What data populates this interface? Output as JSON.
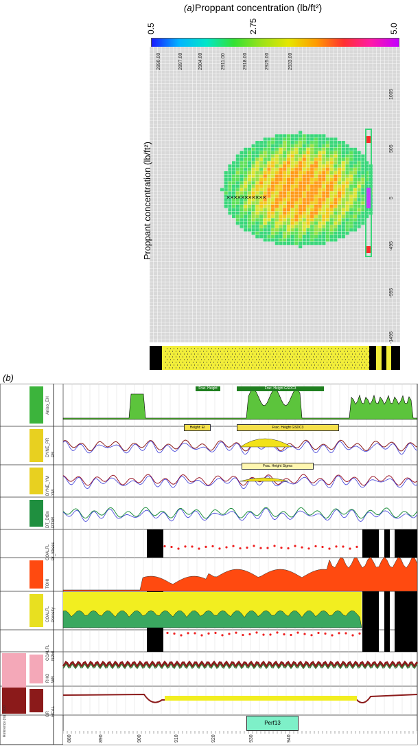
{
  "panel_a": {
    "label": "(a)",
    "colorbar_title": "Proppant concentration (lb/ft²)",
    "colorbar_ticks": [
      "0.5",
      "2.75",
      "5.0"
    ],
    "colorbar_colors": [
      "#1a1aff",
      "#00b4ff",
      "#00e6c8",
      "#33e233",
      "#9be21a",
      "#e6e600",
      "#ff9a00",
      "#ff3030",
      "#ff1aa8",
      "#c400ff"
    ],
    "side_axis_label": "Proppant concentration (lb/ft²)",
    "depth_labels": [
      "2890.00",
      "2897.00",
      "2904.00",
      "2911.00",
      "2918.00",
      "2925.00",
      "2933.00"
    ],
    "right_axis_labels": [
      "1005",
      "505",
      "5",
      "-495",
      "-995",
      "-1495"
    ],
    "perforation_marks": "×××××××××××"
  },
  "panel_b": {
    "label": "(b)",
    "depth_axis_ticks": [
      "880",
      "890",
      "900",
      "910",
      "920",
      "930",
      "940"
    ],
    "reference_label": "Reference (m) 1:100",
    "top_box_labels": [
      "Frac. Height Lith",
      "Frac. Height GSDC3"
    ],
    "box_labels_row2": [
      "Height: El",
      "Frac. Height GSDC3"
    ],
    "box_labels_row3": [
      "Frac. Height Sigma"
    ],
    "perf_label": "Perf13",
    "tracks": [
      {
        "name": "track-1",
        "left_labels": [
          "Aniso_EH"
        ],
        "color": "#3cb43c"
      },
      {
        "name": "track-2",
        "left_labels": [
          "DYNE_PR",
          "PR"
        ],
        "color": "#e8d020"
      },
      {
        "name": "track-3",
        "left_labels": [
          "DYNE_YM",
          "YM"
        ],
        "color": "#e8d020"
      },
      {
        "name": "track-4",
        "left_labels": [
          "DT_DtBn",
          "DTSR"
        ],
        "color": "#1f8f3f"
      },
      {
        "name": "track-5",
        "left_labels": [
          "COALFL",
          "Pr_Stress"
        ],
        "color": "#d22"
      },
      {
        "name": "track-6",
        "left_labels": [
          "TOHI"
        ],
        "color": "#ff4a10"
      },
      {
        "name": "track-7",
        "left_labels": [
          "COALFL",
          "Porosity"
        ],
        "color": "#e8e020"
      },
      {
        "name": "track-8",
        "left_labels": [
          "COALFL",
          "NPHI"
        ],
        "color": "#d22"
      },
      {
        "name": "track-9",
        "left_labels": [
          "RHO",
          "WR"
        ],
        "color": "#f4a8b8"
      },
      {
        "name": "track-10",
        "left_labels": [
          "GR",
          "HCAL"
        ],
        "color": "#8b1a1a"
      }
    ]
  }
}
